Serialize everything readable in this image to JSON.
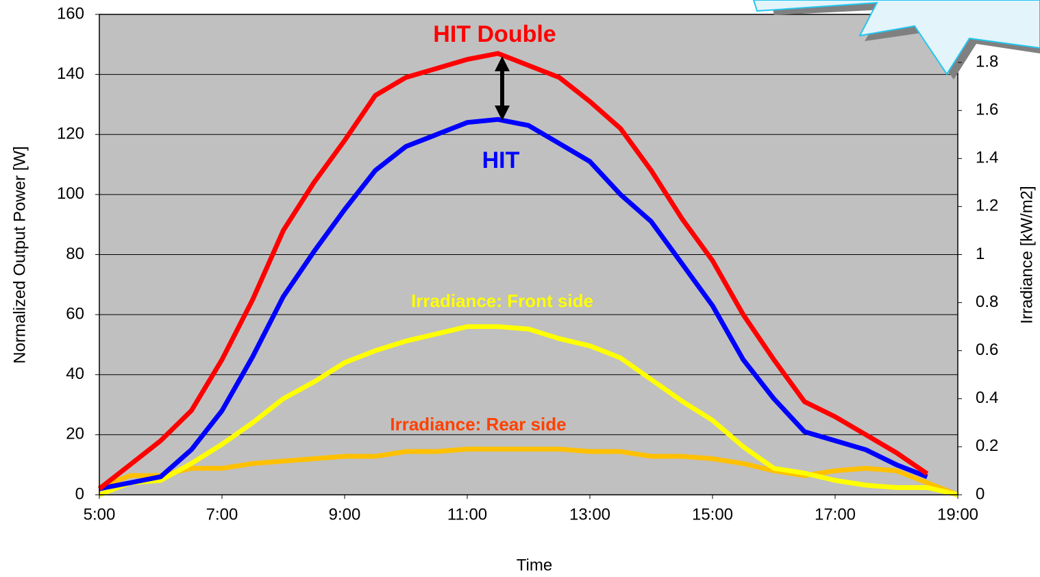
{
  "chart_data": {
    "type": "line",
    "x_label": "Time",
    "y_label": "Normalized Output Power [W]",
    "y2_label": "Irradiance [kW/m2]",
    "x": [
      5,
      5.5,
      6,
      6.5,
      7,
      7.5,
      8,
      8.5,
      9,
      9.5,
      10,
      10.5,
      11,
      11.5,
      12,
      12.5,
      13,
      13.5,
      14,
      14.5,
      15,
      15.5,
      16,
      16.5,
      17,
      17.5,
      18,
      18.5,
      19
    ],
    "xlim": [
      5,
      19
    ],
    "xticks": [
      {
        "value": 5,
        "label": "5:00"
      },
      {
        "value": 7,
        "label": "7:00"
      },
      {
        "value": 9,
        "label": "9:00"
      },
      {
        "value": 11,
        "label": "11:00"
      },
      {
        "value": 13,
        "label": "13:00"
      },
      {
        "value": 15,
        "label": "15:00"
      },
      {
        "value": 17,
        "label": "17:00"
      },
      {
        "value": 19,
        "label": "19:00"
      }
    ],
    "ylim": [
      0,
      160
    ],
    "yticks": [
      0,
      20,
      40,
      60,
      80,
      100,
      120,
      140,
      160
    ],
    "y2lim": [
      0,
      2
    ],
    "y2ticks": [
      0,
      0.2,
      0.4,
      0.6,
      0.8,
      1,
      1.2,
      1.4,
      1.6,
      1.8
    ],
    "grid": true,
    "series": [
      {
        "name": "HIT Double",
        "color": "#ff0000",
        "values": [
          2,
          10,
          18,
          28,
          45,
          65,
          88,
          104,
          118,
          133,
          139,
          142,
          145,
          147,
          143,
          139,
          131,
          122,
          108,
          92,
          78,
          60,
          45,
          31,
          26,
          20,
          14,
          7,
          null
        ]
      },
      {
        "name": "HIT",
        "color": "#0000ff",
        "values": [
          2,
          4,
          6,
          15,
          28,
          46,
          66,
          81,
          95,
          108,
          116,
          120,
          124,
          125,
          123,
          117,
          111,
          100,
          91,
          77,
          63,
          45,
          32,
          21,
          18,
          15,
          10,
          6,
          null
        ]
      },
      {
        "name": "Irradiance: Front side",
        "color": "#ffff00",
        "axis": "y2",
        "values": [
          0,
          0.05,
          0.06,
          0.13,
          0.21,
          0.3,
          0.4,
          0.47,
          0.55,
          0.6,
          0.64,
          0.67,
          0.7,
          0.7,
          0.69,
          0.65,
          0.62,
          0.57,
          0.48,
          0.39,
          0.31,
          0.2,
          0.11,
          0.09,
          0.06,
          0.04,
          0.03,
          0.03,
          0
        ]
      },
      {
        "name": "Irradiance: Rear side",
        "color": "#ffc000",
        "axis": "y2",
        "values": [
          0.03,
          0.08,
          0.08,
          0.11,
          0.11,
          0.13,
          0.14,
          0.15,
          0.16,
          0.16,
          0.18,
          0.18,
          0.19,
          0.19,
          0.19,
          0.19,
          0.18,
          0.18,
          0.16,
          0.16,
          0.15,
          0.13,
          0.1,
          0.08,
          0.1,
          0.11,
          0.1,
          0.05,
          0
        ]
      }
    ],
    "annotations": [
      {
        "text": "HIT Double",
        "color": "#ff0000"
      },
      {
        "text": "HIT",
        "color": "#0000ff"
      },
      {
        "text": "Irradiance: Front side",
        "color": "#ffff00"
      },
      {
        "text": "Irradiance: Rear side",
        "color": "#ff4000"
      }
    ]
  }
}
